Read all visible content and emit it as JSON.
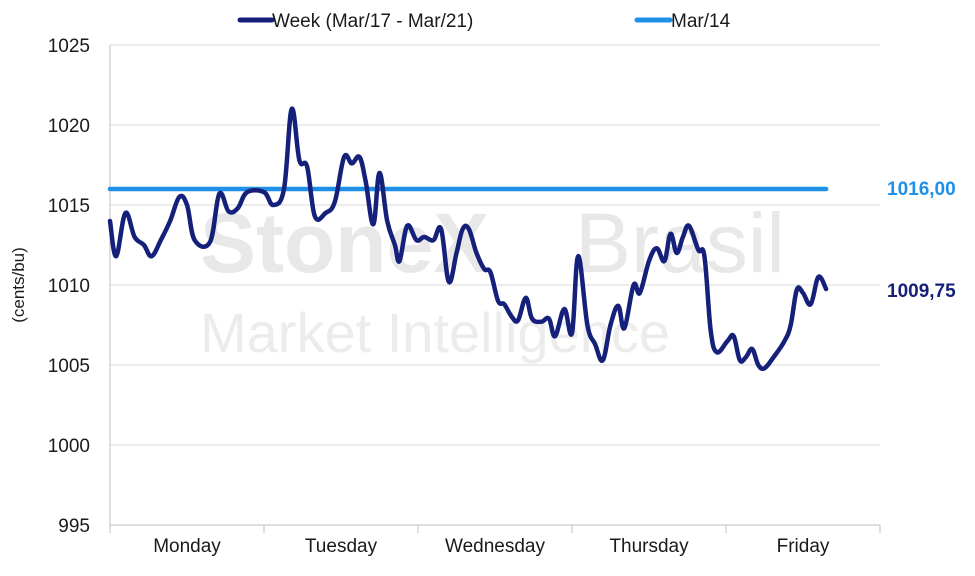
{
  "colors": {
    "week": "#15207a",
    "ref": "#1e90e8",
    "grid": "#d9d9d9",
    "axis": "#bfbfbf",
    "text": "#1a1a1a",
    "watermark": "#e6e6e6"
  },
  "watermark": {
    "brand": "StoneX",
    "brand_suffix": "Brasil",
    "tagline": "Market Intelligence"
  },
  "chart_data": {
    "type": "line",
    "ylabel": "(cents/bu)",
    "ylim": [
      995,
      1025
    ],
    "yticks": [
      995,
      1000,
      1005,
      1010,
      1015,
      1020,
      1025
    ],
    "categories": [
      "Monday",
      "Tuesday",
      "Wednesday",
      "Thursday",
      "Friday"
    ],
    "grid": true,
    "legend": "top",
    "series": [
      {
        "name": "Week (Mar/17 - Mar/21)",
        "color": "#15207a",
        "end_label": "1009,75",
        "values": [
          [
            0.0,
            1014.0
          ],
          [
            0.04,
            1011.8
          ],
          [
            0.1,
            1014.5
          ],
          [
            0.16,
            1013.0
          ],
          [
            0.22,
            1012.5
          ],
          [
            0.27,
            1011.8
          ],
          [
            0.33,
            1012.8
          ],
          [
            0.39,
            1014.0
          ],
          [
            0.45,
            1015.5
          ],
          [
            0.5,
            1015.0
          ],
          [
            0.55,
            1012.8
          ],
          [
            0.65,
            1012.7
          ],
          [
            0.71,
            1015.7
          ],
          [
            0.77,
            1014.6
          ],
          [
            0.83,
            1014.8
          ],
          [
            0.89,
            1015.8
          ],
          [
            1.0,
            1015.8
          ],
          [
            1.06,
            1015.0
          ],
          [
            1.13,
            1016.0
          ],
          [
            1.18,
            1021.0
          ],
          [
            1.23,
            1017.8
          ],
          [
            1.28,
            1017.4
          ],
          [
            1.33,
            1014.3
          ],
          [
            1.4,
            1014.5
          ],
          [
            1.46,
            1015.2
          ],
          [
            1.52,
            1018.0
          ],
          [
            1.57,
            1017.6
          ],
          [
            1.62,
            1018.0
          ],
          [
            1.66,
            1016.5
          ],
          [
            1.71,
            1013.8
          ],
          [
            1.75,
            1017.0
          ],
          [
            1.8,
            1014.0
          ],
          [
            1.85,
            1012.5
          ],
          [
            1.88,
            1011.5
          ],
          [
            1.93,
            1013.7
          ],
          [
            1.99,
            1012.8
          ],
          [
            2.04,
            1013.0
          ],
          [
            2.1,
            1012.8
          ],
          [
            2.15,
            1013.5
          ],
          [
            2.2,
            1010.2
          ],
          [
            2.25,
            1012.0
          ],
          [
            2.29,
            1013.5
          ],
          [
            2.33,
            1013.5
          ],
          [
            2.38,
            1012.0
          ],
          [
            2.43,
            1011.0
          ],
          [
            2.47,
            1010.8
          ],
          [
            2.52,
            1009.0
          ],
          [
            2.56,
            1008.8
          ],
          [
            2.61,
            1008.0
          ],
          [
            2.65,
            1007.8
          ],
          [
            2.7,
            1009.2
          ],
          [
            2.74,
            1007.9
          ],
          [
            2.8,
            1007.7
          ],
          [
            2.85,
            1007.9
          ],
          [
            2.89,
            1006.8
          ],
          [
            2.95,
            1008.5
          ],
          [
            3.0,
            1007.0
          ],
          [
            3.04,
            1011.8
          ],
          [
            3.1,
            1007.5
          ],
          [
            3.15,
            1006.3
          ],
          [
            3.2,
            1005.3
          ],
          [
            3.25,
            1007.5
          ],
          [
            3.3,
            1008.7
          ],
          [
            3.34,
            1007.3
          ],
          [
            3.4,
            1010.0
          ],
          [
            3.44,
            1009.5
          ],
          [
            3.5,
            1011.5
          ],
          [
            3.55,
            1012.3
          ],
          [
            3.6,
            1011.5
          ],
          [
            3.64,
            1013.2
          ],
          [
            3.68,
            1012.0
          ],
          [
            3.72,
            1013.0
          ],
          [
            3.76,
            1013.7
          ],
          [
            3.82,
            1012.2
          ],
          [
            3.86,
            1011.8
          ],
          [
            3.9,
            1007.2
          ],
          [
            3.94,
            1005.8
          ],
          [
            4.01,
            1006.5
          ],
          [
            4.05,
            1006.8
          ],
          [
            4.09,
            1005.3
          ],
          [
            4.13,
            1005.5
          ],
          [
            4.17,
            1006.0
          ],
          [
            4.21,
            1005.0
          ],
          [
            4.25,
            1004.8
          ],
          [
            4.31,
            1005.5
          ],
          [
            4.38,
            1006.5
          ],
          [
            4.42,
            1007.5
          ],
          [
            4.46,
            1009.7
          ],
          [
            4.5,
            1009.5
          ],
          [
            4.55,
            1008.8
          ],
          [
            4.6,
            1010.5
          ],
          [
            4.65,
            1009.75
          ]
        ]
      },
      {
        "name": "Mar/14",
        "color": "#1e90e8",
        "end_label": "1016,00",
        "values": [
          [
            0.0,
            1016.0
          ],
          [
            4.65,
            1016.0
          ]
        ]
      }
    ]
  }
}
